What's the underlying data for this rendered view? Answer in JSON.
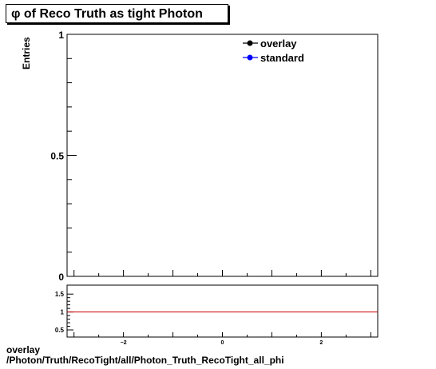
{
  "page": {
    "footer_line1": "overlay",
    "footer_line2": "/Photon/Truth/RecoTight/all/Photon_Truth_RecoTight_all_phi"
  },
  "chart_data": [
    {
      "type": "line",
      "title": "φ of Reco Truth as tight Photon",
      "xlabel": "",
      "ylabel": "Entries",
      "xlim": [
        -3.14,
        3.14
      ],
      "ylim": [
        0,
        1
      ],
      "yticks": [
        {
          "v": 0,
          "label": "0"
        },
        {
          "v": 0.5,
          "label": "0.5"
        },
        {
          "v": 1,
          "label": "1"
        }
      ],
      "series": [
        {
          "name": "overlay",
          "color": "#000000",
          "marker": "circle",
          "x": [],
          "y": []
        },
        {
          "name": "standard",
          "color": "#0000ff",
          "marker": "circle",
          "x": [],
          "y": []
        }
      ],
      "legend_position": "top-right",
      "grid": false
    },
    {
      "type": "line",
      "title": "",
      "xlabel": "",
      "ylabel": "",
      "xlim": [
        -3.14,
        3.14
      ],
      "ylim": [
        0.3,
        1.75
      ],
      "xticks": [
        {
          "v": -2,
          "label": "−2"
        },
        {
          "v": 0,
          "label": "0"
        },
        {
          "v": 2,
          "label": "2"
        }
      ],
      "yticks": [
        {
          "v": 0.5,
          "label": "0.5"
        },
        {
          "v": 1,
          "label": "1"
        },
        {
          "v": 1.5,
          "label": "1.5"
        }
      ],
      "reference_line": {
        "y": 1,
        "color": "#cc0000"
      },
      "grid": false
    }
  ]
}
